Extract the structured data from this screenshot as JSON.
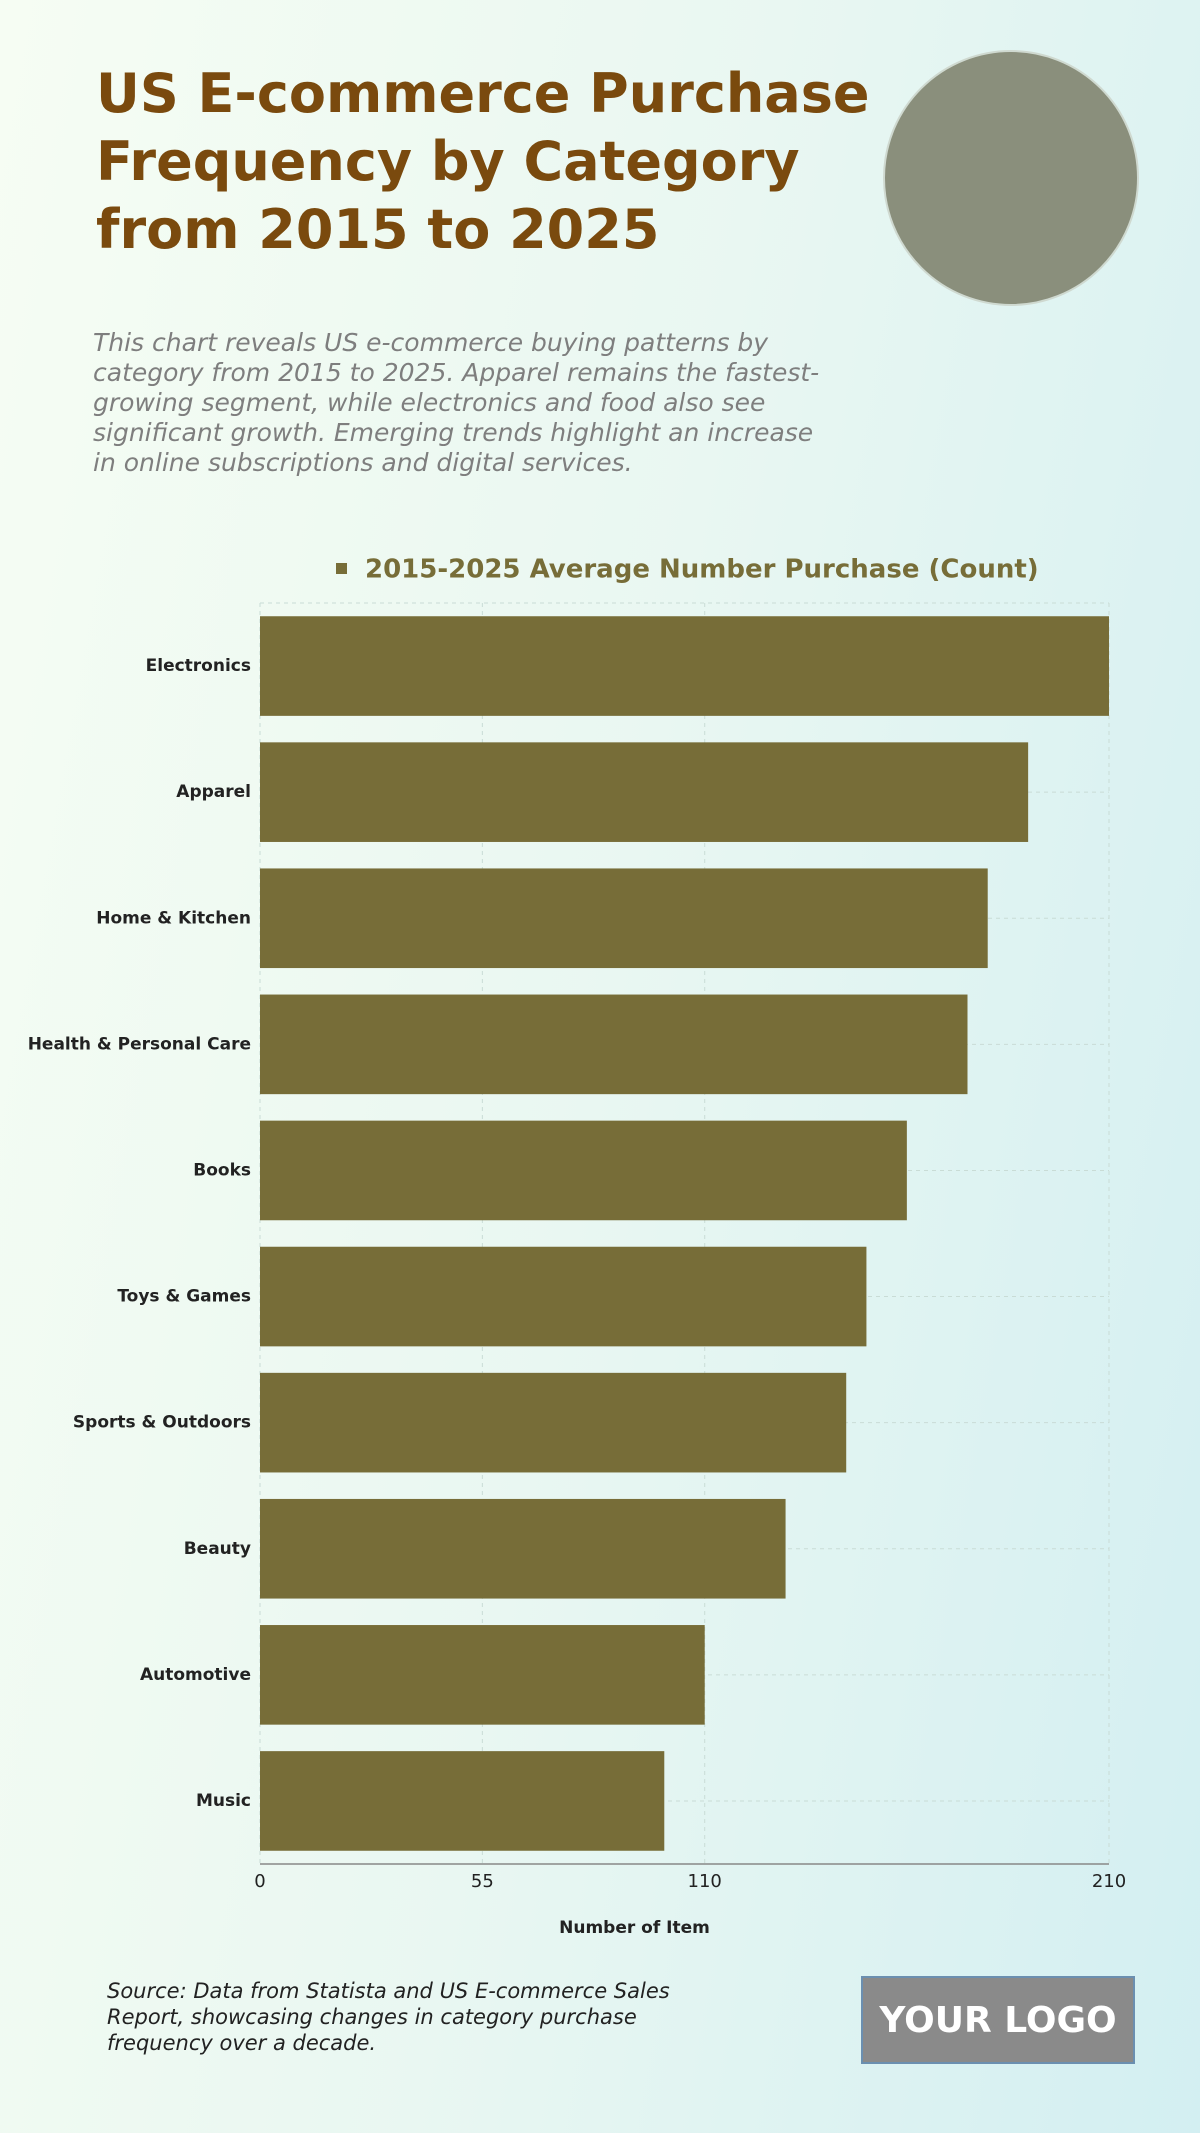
{
  "chart_data": {
    "type": "bar",
    "orientation": "horizontal",
    "title": "US E-commerce Purchase Frequency by Category from 2015 to 2025",
    "subtitle": "This chart reveals US e-commerce buying patterns by category from 2015 to 2025. Apparel remains the fastest-growing segment, while electronics and food also see significant growth. Emerging trends highlight an increase in online subscriptions and digital services.",
    "categories": [
      "Electronics",
      "Apparel",
      "Home & Kitchen",
      "Health & Personal Care",
      "Books",
      "Toys & Games",
      "Sports & Outdoors",
      "Beauty",
      "Automotive",
      "Music"
    ],
    "series": [
      {
        "name": "2015-2025 Average Number Purchase (Count)",
        "color": "#776d38",
        "values": [
          210,
          190,
          180,
          175,
          160,
          150,
          145,
          130,
          110,
          100
        ]
      }
    ],
    "xlabel": "Number of Item",
    "xlim": [
      0,
      210
    ],
    "xticks": [
      0,
      55,
      110,
      210
    ],
    "grid": true,
    "legend": "top",
    "source": "Source: Data from Statista and US E-commerce Sales Report, showcasing changes in category purchase frequency over a decade.",
    "logo": "YOUR LOGO"
  }
}
